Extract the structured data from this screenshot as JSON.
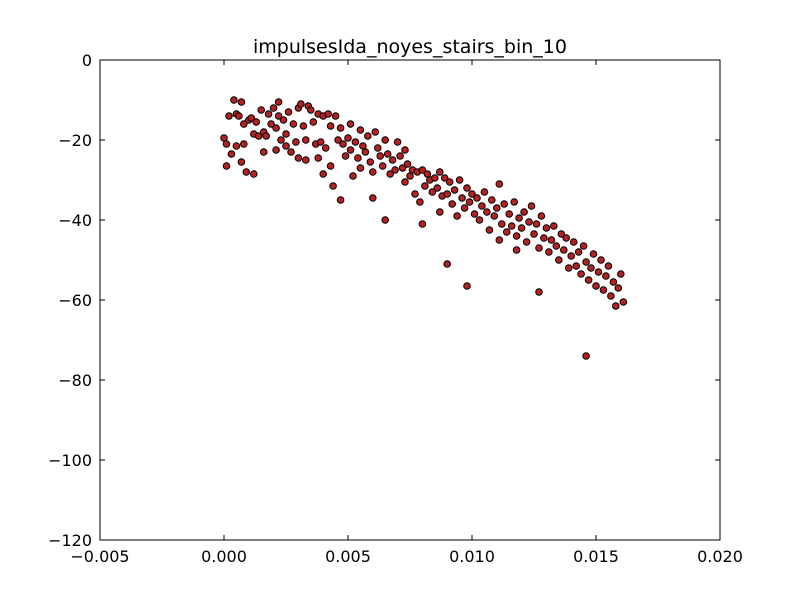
{
  "chart_data": {
    "type": "scatter",
    "title": "impulsesIda_noyes_stairs_bin_10",
    "xlabel": "",
    "ylabel": "",
    "xlim": [
      -0.005,
      0.02
    ],
    "ylim": [
      -120,
      0
    ],
    "x_ticks": [
      "−0.005",
      "0.000",
      "0.005",
      "0.010",
      "0.015",
      "0.020"
    ],
    "y_ticks": [
      "0",
      "−20",
      "−40",
      "−60",
      "−80",
      "−100",
      "−120"
    ],
    "x_tick_values": [
      -0.005,
      0.0,
      0.005,
      0.01,
      0.015,
      0.02
    ],
    "y_tick_values": [
      0,
      -20,
      -40,
      -60,
      -80,
      -100,
      -120
    ],
    "grid": false,
    "marker_color": "#b22222",
    "marker_edge_color": "#000000",
    "points": [
      [
        0.0,
        -19.5
      ],
      [
        0.0001,
        -21.0
      ],
      [
        0.0001,
        -26.5
      ],
      [
        0.0002,
        -14.0
      ],
      [
        0.0003,
        -23.5
      ],
      [
        0.0004,
        -10.0
      ],
      [
        0.0005,
        -13.5
      ],
      [
        0.0005,
        -21.5
      ],
      [
        0.0006,
        -14.0
      ],
      [
        0.0007,
        -25.5
      ],
      [
        0.0007,
        -10.5
      ],
      [
        0.0008,
        -16.0
      ],
      [
        0.0008,
        -21.0
      ],
      [
        0.0009,
        -28.0
      ],
      [
        0.001,
        -15.0
      ],
      [
        0.0011,
        -14.5
      ],
      [
        0.0012,
        -18.5
      ],
      [
        0.0012,
        -28.5
      ],
      [
        0.0013,
        -15.5
      ],
      [
        0.0014,
        -19.0
      ],
      [
        0.0015,
        -12.5
      ],
      [
        0.0016,
        -18.0
      ],
      [
        0.0016,
        -23.0
      ],
      [
        0.0017,
        -19.0
      ],
      [
        0.0018,
        -13.5
      ],
      [
        0.0019,
        -16.0
      ],
      [
        0.002,
        -12.0
      ],
      [
        0.0021,
        -17.0
      ],
      [
        0.0021,
        -22.5
      ],
      [
        0.0022,
        -10.5
      ],
      [
        0.0022,
        -14.0
      ],
      [
        0.0023,
        -20.0
      ],
      [
        0.0024,
        -15.0
      ],
      [
        0.0025,
        -18.5
      ],
      [
        0.0025,
        -21.5
      ],
      [
        0.0026,
        -13.0
      ],
      [
        0.0027,
        -23.0
      ],
      [
        0.0028,
        -16.0
      ],
      [
        0.0029,
        -20.5
      ],
      [
        0.003,
        -12.0
      ],
      [
        0.003,
        -24.5
      ],
      [
        0.0031,
        -11.0
      ],
      [
        0.0032,
        -16.5
      ],
      [
        0.0033,
        -20.0
      ],
      [
        0.0033,
        -25.0
      ],
      [
        0.0034,
        -11.5
      ],
      [
        0.0035,
        -12.5
      ],
      [
        0.0036,
        -15.5
      ],
      [
        0.0037,
        -21.0
      ],
      [
        0.0038,
        -24.5
      ],
      [
        0.0038,
        -13.5
      ],
      [
        0.0039,
        -20.5
      ],
      [
        0.004,
        -14.0
      ],
      [
        0.004,
        -28.5
      ],
      [
        0.0041,
        -22.0
      ],
      [
        0.0042,
        -13.5
      ],
      [
        0.0043,
        -16.5
      ],
      [
        0.0043,
        -26.5
      ],
      [
        0.0044,
        -31.5
      ],
      [
        0.0045,
        -14.0
      ],
      [
        0.0046,
        -20.0
      ],
      [
        0.0047,
        -17.0
      ],
      [
        0.0047,
        -35.0
      ],
      [
        0.0048,
        -21.0
      ],
      [
        0.0049,
        -24.0
      ],
      [
        0.005,
        -19.5
      ],
      [
        0.0051,
        -22.5
      ],
      [
        0.0051,
        -16.0
      ],
      [
        0.0052,
        -29.0
      ],
      [
        0.0053,
        -20.5
      ],
      [
        0.0054,
        -24.5
      ],
      [
        0.0055,
        -17.5
      ],
      [
        0.0055,
        -27.0
      ],
      [
        0.0056,
        -21.5
      ],
      [
        0.0057,
        -23.0
      ],
      [
        0.0058,
        -19.0
      ],
      [
        0.0059,
        -25.5
      ],
      [
        0.006,
        -28.0
      ],
      [
        0.006,
        -34.5
      ],
      [
        0.0061,
        -18.0
      ],
      [
        0.0062,
        -22.0
      ],
      [
        0.0063,
        -24.0
      ],
      [
        0.0064,
        -26.5
      ],
      [
        0.0065,
        -20.0
      ],
      [
        0.0065,
        -40.0
      ],
      [
        0.0066,
        -23.5
      ],
      [
        0.0067,
        -28.5
      ],
      [
        0.0068,
        -25.0
      ],
      [
        0.0069,
        -27.5
      ],
      [
        0.007,
        -20.5
      ],
      [
        0.0071,
        -24.0
      ],
      [
        0.0072,
        -27.0
      ],
      [
        0.0073,
        -30.5
      ],
      [
        0.0073,
        -22.5
      ],
      [
        0.0074,
        -26.0
      ],
      [
        0.0075,
        -29.0
      ],
      [
        0.0076,
        -27.5
      ],
      [
        0.0077,
        -33.5
      ],
      [
        0.0078,
        -28.0
      ],
      [
        0.0079,
        -35.5
      ],
      [
        0.008,
        -41.0
      ],
      [
        0.008,
        -27.5
      ],
      [
        0.0081,
        -31.5
      ],
      [
        0.0082,
        -28.5
      ],
      [
        0.0083,
        -30.0
      ],
      [
        0.0084,
        -33.0
      ],
      [
        0.0085,
        -29.5
      ],
      [
        0.0086,
        -32.0
      ],
      [
        0.0087,
        -38.0
      ],
      [
        0.0087,
        -28.0
      ],
      [
        0.0088,
        -34.0
      ],
      [
        0.0089,
        -29.5
      ],
      [
        0.009,
        -33.5
      ],
      [
        0.009,
        -51.0
      ],
      [
        0.0091,
        -30.5
      ],
      [
        0.0092,
        -36.0
      ],
      [
        0.0093,
        -32.5
      ],
      [
        0.0094,
        -39.0
      ],
      [
        0.0095,
        -30.0
      ],
      [
        0.0096,
        -34.5
      ],
      [
        0.0097,
        -37.0
      ],
      [
        0.0098,
        -32.0
      ],
      [
        0.0098,
        -56.5
      ],
      [
        0.0099,
        -35.5
      ],
      [
        0.01,
        -33.5
      ],
      [
        0.0101,
        -38.5
      ],
      [
        0.0102,
        -34.5
      ],
      [
        0.0103,
        -40.0
      ],
      [
        0.0104,
        -36.5
      ],
      [
        0.0105,
        -33.0
      ],
      [
        0.0106,
        -38.0
      ],
      [
        0.0107,
        -42.5
      ],
      [
        0.0108,
        -35.0
      ],
      [
        0.0109,
        -39.0
      ],
      [
        0.011,
        -37.0
      ],
      [
        0.0111,
        -45.0
      ],
      [
        0.0111,
        -31.0
      ],
      [
        0.0112,
        -41.0
      ],
      [
        0.0113,
        -36.0
      ],
      [
        0.0114,
        -43.0
      ],
      [
        0.0115,
        -38.5
      ],
      [
        0.0116,
        -41.5
      ],
      [
        0.0117,
        -35.5
      ],
      [
        0.0118,
        -44.0
      ],
      [
        0.0118,
        -47.5
      ],
      [
        0.0119,
        -39.5
      ],
      [
        0.012,
        -42.0
      ],
      [
        0.0121,
        -38.0
      ],
      [
        0.0122,
        -45.5
      ],
      [
        0.0123,
        -40.5
      ],
      [
        0.0124,
        -36.5
      ],
      [
        0.0125,
        -43.5
      ],
      [
        0.0126,
        -41.0
      ],
      [
        0.0127,
        -47.0
      ],
      [
        0.0127,
        -58.0
      ],
      [
        0.0128,
        -39.0
      ],
      [
        0.0129,
        -44.5
      ],
      [
        0.013,
        -42.0
      ],
      [
        0.0131,
        -48.0
      ],
      [
        0.0132,
        -45.0
      ],
      [
        0.0133,
        -41.5
      ],
      [
        0.0134,
        -46.5
      ],
      [
        0.0135,
        -50.0
      ],
      [
        0.0136,
        -43.5
      ],
      [
        0.0137,
        -47.5
      ],
      [
        0.0138,
        -44.5
      ],
      [
        0.0139,
        -52.0
      ],
      [
        0.014,
        -49.0
      ],
      [
        0.0141,
        -45.5
      ],
      [
        0.0142,
        -51.5
      ],
      [
        0.0143,
        -48.0
      ],
      [
        0.0144,
        -53.5
      ],
      [
        0.0145,
        -46.5
      ],
      [
        0.0146,
        -50.5
      ],
      [
        0.0146,
        -74.0
      ],
      [
        0.0147,
        -55.0
      ],
      [
        0.0148,
        -52.0
      ],
      [
        0.0149,
        -48.5
      ],
      [
        0.015,
        -56.5
      ],
      [
        0.0151,
        -53.0
      ],
      [
        0.0152,
        -50.0
      ],
      [
        0.0153,
        -57.5
      ],
      [
        0.0154,
        -54.0
      ],
      [
        0.0155,
        -51.5
      ],
      [
        0.0156,
        -59.0
      ],
      [
        0.0157,
        -55.5
      ],
      [
        0.0158,
        -61.5
      ],
      [
        0.0159,
        -57.0
      ],
      [
        0.016,
        -53.5
      ],
      [
        0.0161,
        -60.5
      ]
    ]
  }
}
